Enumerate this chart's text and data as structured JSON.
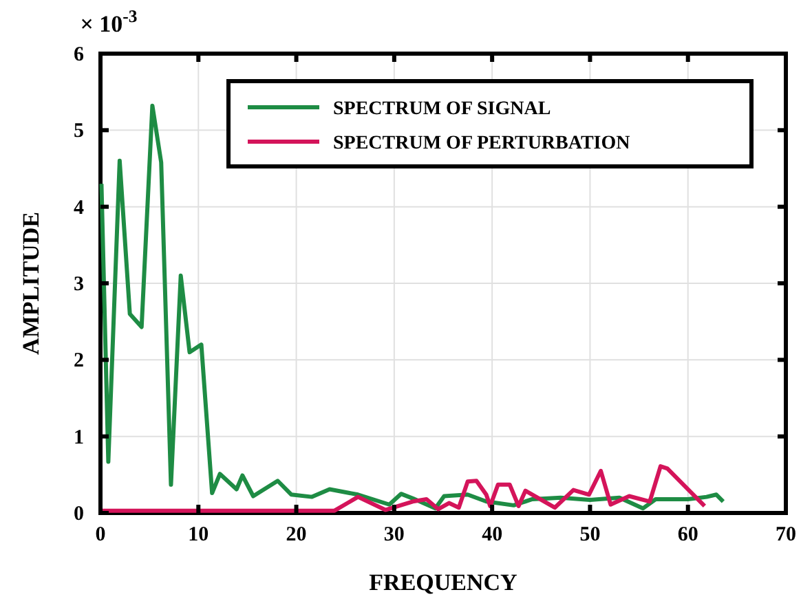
{
  "chart_data": {
    "type": "line",
    "xlabel": "FREQUENCY",
    "ylabel": "AMPLITUDE",
    "annotations": [
      "× 10$^{-3}$"
    ],
    "xlim": [
      0,
      70
    ],
    "xticks": [
      0,
      10,
      20,
      30,
      40,
      50,
      60,
      70
    ],
    "ylim": [
      0,
      6
    ],
    "yticks": [
      0,
      1,
      2,
      3,
      4,
      5,
      6
    ],
    "grid": true,
    "legend": "top right",
    "series": [
      {
        "name": "SPECTRUM OF SIGNAL",
        "color": "#1e8c44",
        "x": [
          0.1,
          0.8,
          1.96,
          3,
          4.2,
          5.3,
          6.2,
          7.2,
          8.2,
          9.1,
          10.3,
          11.4,
          12.2,
          13.9,
          14.5,
          15.6,
          18.1,
          19.5,
          21.6,
          23.4,
          26.3,
          29.5,
          30.7,
          31.9,
          34.2,
          35.1,
          37.5,
          39.4,
          42.2,
          44.1,
          47,
          50,
          53,
          55.4,
          56.7,
          60,
          61.9,
          62.9,
          63.6
        ],
        "values": [
          4.3,
          0.67,
          4.6,
          2.6,
          2.43,
          5.32,
          4.58,
          0.37,
          3.1,
          2.1,
          2.2,
          0.26,
          0.51,
          0.31,
          0.49,
          0.22,
          0.42,
          0.24,
          0.21,
          0.31,
          0.24,
          0.11,
          0.25,
          0.19,
          0.06,
          0.22,
          0.24,
          0.15,
          0.1,
          0.18,
          0.2,
          0.17,
          0.2,
          0.06,
          0.18,
          0.18,
          0.21,
          0.24,
          0.15
        ]
      },
      {
        "name": "SPECTRUM OF PERTURBATION",
        "color": "#d4145a",
        "x": [
          0,
          10,
          20,
          23.9,
          26.3,
          29.1,
          31.9,
          33.3,
          34.5,
          35.6,
          36.6,
          37.5,
          38.4,
          39.4,
          39.8,
          40.6,
          41.8,
          42.7,
          43.4,
          46.4,
          48.3,
          49.9,
          51.1,
          52.1,
          54,
          56.1,
          57.2,
          57.9,
          61.7
        ],
        "values": [
          0.03,
          0.03,
          0.03,
          0.03,
          0.21,
          0.04,
          0.15,
          0.18,
          0.05,
          0.13,
          0.07,
          0.41,
          0.42,
          0.24,
          0.09,
          0.37,
          0.37,
          0.09,
          0.29,
          0.07,
          0.3,
          0.24,
          0.55,
          0.11,
          0.22,
          0.15,
          0.61,
          0.58,
          0.09
        ]
      }
    ]
  }
}
